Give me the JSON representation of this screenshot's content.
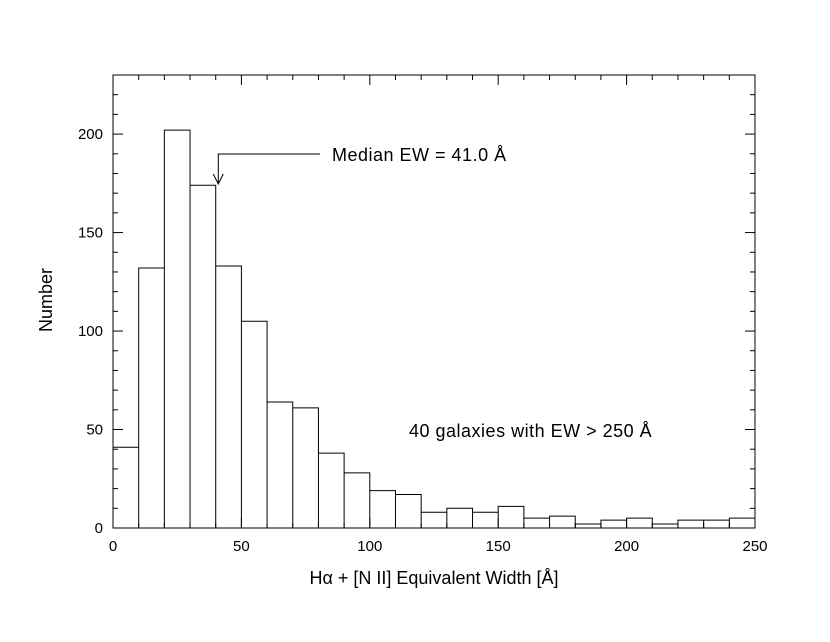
{
  "chart_data": {
    "type": "bar",
    "title": "",
    "xlabel": "Hα + [N II] Equivalent Width [Å]",
    "ylabel": "Number",
    "xlim": [
      0,
      250
    ],
    "ylim": [
      0,
      230
    ],
    "grid": false,
    "bin_width": 10,
    "bin_left_edges": [
      0,
      10,
      20,
      30,
      40,
      50,
      60,
      70,
      80,
      90,
      100,
      110,
      120,
      130,
      140,
      150,
      160,
      170,
      180,
      190,
      200,
      210,
      220,
      230,
      240
    ],
    "values": [
      41,
      132,
      202,
      174,
      133,
      105,
      64,
      61,
      38,
      28,
      19,
      17,
      8,
      10,
      8,
      11,
      5,
      6,
      2,
      4,
      5,
      2,
      4,
      4,
      5
    ],
    "x_ticks": [
      "0",
      "50",
      "100",
      "150",
      "200",
      "250"
    ],
    "y_ticks": [
      "0",
      "50",
      "100",
      "150",
      "200"
    ],
    "annotations": [
      {
        "text": "Median EW = 41.0 Å",
        "arrow_x": 41.0
      },
      {
        "text": "40 galaxies with EW > 250 Å"
      }
    ]
  },
  "colors": {
    "line": "#000000",
    "background": "#ffffff"
  }
}
